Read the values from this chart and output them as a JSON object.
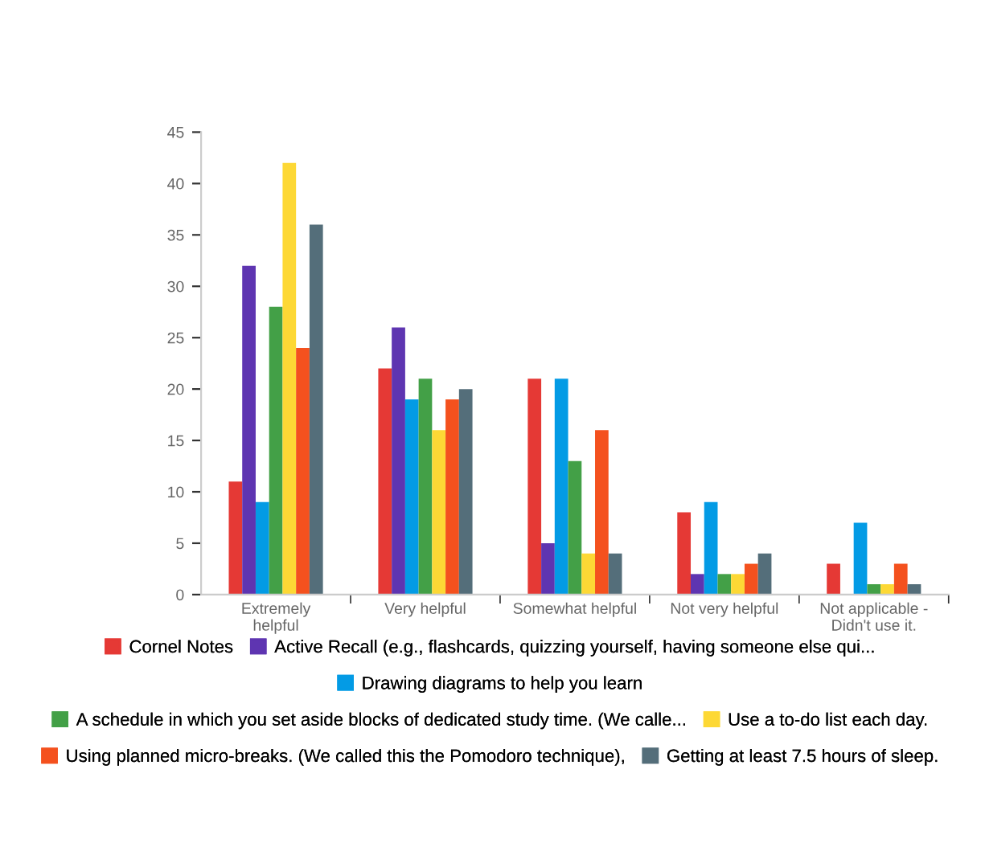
{
  "chart_data": {
    "type": "bar",
    "categories": [
      "Extremely\nhelpful",
      "Very helpful",
      "Somewhat helpful",
      "Not very helpful",
      "Not applicable -\nDidn't use it."
    ],
    "series": [
      {
        "name": "Cornel Notes",
        "color": "#e53935",
        "values": [
          11,
          22,
          21,
          8,
          3
        ]
      },
      {
        "name": "Active Recall (e.g., flashcards, quizzing yourself, having someone else qui...",
        "color": "#5e35b1",
        "values": [
          32,
          26,
          5,
          2,
          0
        ]
      },
      {
        "name": "Drawing diagrams to help you learn",
        "color": "#039be5",
        "values": [
          9,
          19,
          21,
          9,
          7
        ]
      },
      {
        "name": "A schedule in which you set aside blocks of dedicated study time. (We calle...",
        "color": "#43a047",
        "values": [
          28,
          21,
          13,
          2,
          1
        ]
      },
      {
        "name": "Use a to-do list each day.",
        "color": "#fdd835",
        "values": [
          42,
          16,
          4,
          2,
          1
        ]
      },
      {
        "name": "Using planned micro-breaks. (We called this the Pomodoro technique),",
        "color": "#f4511e",
        "values": [
          24,
          19,
          16,
          3,
          3
        ]
      },
      {
        "name": "Getting at least 7.5 hours of sleep.",
        "color": "#546e7a",
        "values": [
          36,
          20,
          4,
          4,
          1
        ]
      }
    ],
    "ylim": [
      0,
      45
    ],
    "yticks": [
      0,
      5,
      10,
      15,
      20,
      25,
      30,
      35,
      40,
      45
    ],
    "grid": false,
    "legend": "bottom"
  }
}
